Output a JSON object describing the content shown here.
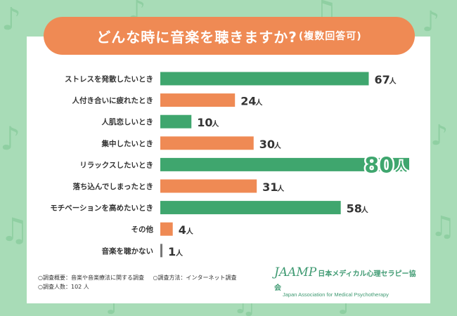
{
  "title": "どんな時に音楽を聴きますか?",
  "title_sub": "(複数回答可)",
  "chart_data": {
    "type": "bar",
    "orientation": "horizontal",
    "title": "どんな時に音楽を聴きますか?(複数回答可)",
    "categories": [
      "ストレスを発散したいとき",
      "人付き合いに疲れたとき",
      "人肌恋しいとき",
      "集中したいとき",
      "リラックスしたいとき",
      "落ち込んでしまったとき",
      "モチベーションを高めたいとき",
      "その他",
      "音楽を聴かない"
    ],
    "values": [
      67,
      24,
      10,
      30,
      80,
      31,
      58,
      4,
      1
    ],
    "unit": "人",
    "xlim": [
      0,
      80
    ],
    "highlight_index": 4,
    "colors": [
      "#3fa66e",
      "#ef8a54",
      "#3fa66e",
      "#ef8a54",
      "#3fa66e",
      "#ef8a54",
      "#3fa66e",
      "#ef8a54",
      "#777777"
    ]
  },
  "footer": {
    "overview": "○調査概要：音楽や音楽療法に関する調査",
    "method": "○調査方法：インターネット調査",
    "respondents": "○調査人数：102 人"
  },
  "logo": {
    "brand": "JAAMP",
    "brand_jp": "日本メディカル心理セラピー協会",
    "brand_en": "Japan Association for Medical Psychotherapy"
  },
  "colors": {
    "background": "#a8dcb7",
    "green": "#3fa66e",
    "orange": "#ef8a54",
    "gray": "#777777"
  }
}
